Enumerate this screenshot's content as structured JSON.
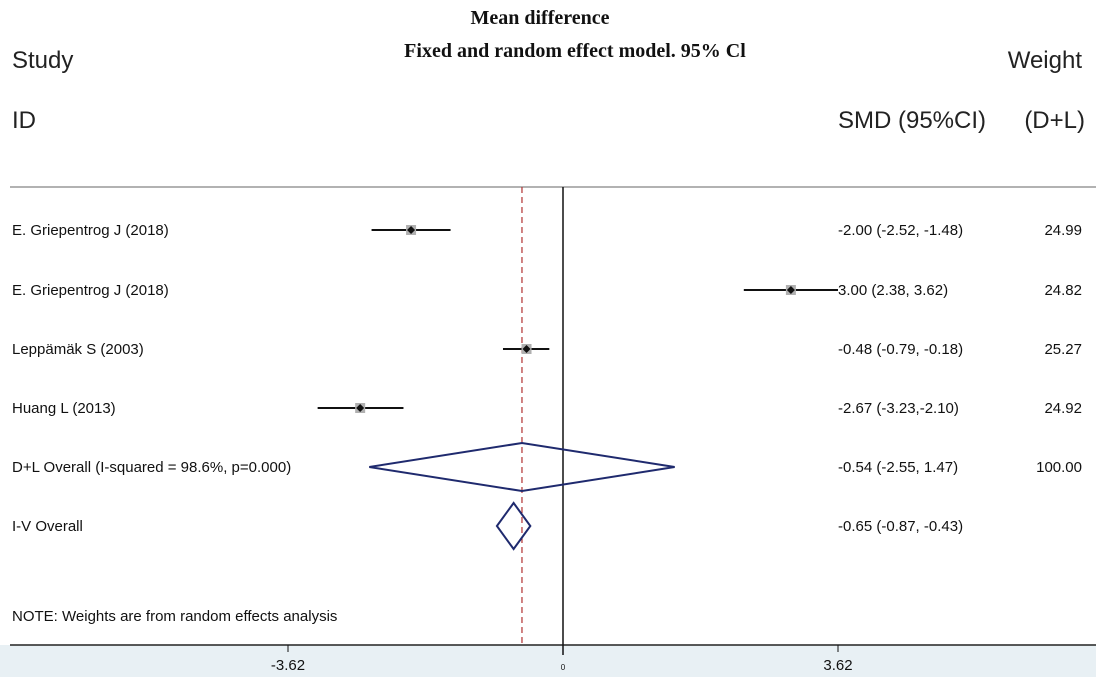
{
  "header": {
    "title_line1": "Mean difference",
    "title_line2": "Fixed and random effect model. 95% Cl",
    "col_study": "Study",
    "col_id": "ID",
    "col_weight": "Weight",
    "col_smd": "SMD (95%CI)",
    "col_dl": "(D+L)"
  },
  "note": "NOTE: Weights are from random effects analysis",
  "chart_data": {
    "type": "forest",
    "xlim": [
      -5.3,
      4.9
    ],
    "null_line": 0,
    "overall_line": -0.54,
    "x_ticks": [
      {
        "value": -3.62,
        "label": "-3.62"
      },
      {
        "value": 0,
        "label": "0"
      },
      {
        "value": 3.62,
        "label": "3.62"
      }
    ],
    "studies": [
      {
        "label": "E. Griepentrog J (2018)",
        "est": -2.0,
        "lo": -2.52,
        "hi": -1.48,
        "ci_text": "-2.00 (-2.52, -1.48)",
        "weight": "24.99"
      },
      {
        "label": "E. Griepentrog J (2018)",
        "est": 3.0,
        "lo": 2.38,
        "hi": 3.62,
        "ci_text": "3.00 (2.38, 3.62)",
        "weight": "24.82"
      },
      {
        "label": "Leppämäk S (2003)",
        "est": -0.48,
        "lo": -0.79,
        "hi": -0.18,
        "ci_text": "-0.48 (-0.79, -0.18)",
        "weight": "25.27"
      },
      {
        "label": "Huang L (2013)",
        "est": -2.67,
        "lo": -3.23,
        "hi": -2.1,
        "ci_text": "-2.67 (-3.23,-2.10)",
        "weight": "24.92"
      }
    ],
    "overall": [
      {
        "label": "D+L Overall (I-squared = 98.6%, p=0.000)",
        "est": -0.54,
        "lo": -2.55,
        "hi": 1.47,
        "ci_text": "-0.54 (-2.55, 1.47)",
        "weight": "100.00"
      },
      {
        "label": "I-V Overall",
        "est": -0.65,
        "lo": -0.87,
        "hi": -0.43,
        "ci_text": "-0.65 (-0.87, -0.43)",
        "weight": ""
      }
    ]
  }
}
